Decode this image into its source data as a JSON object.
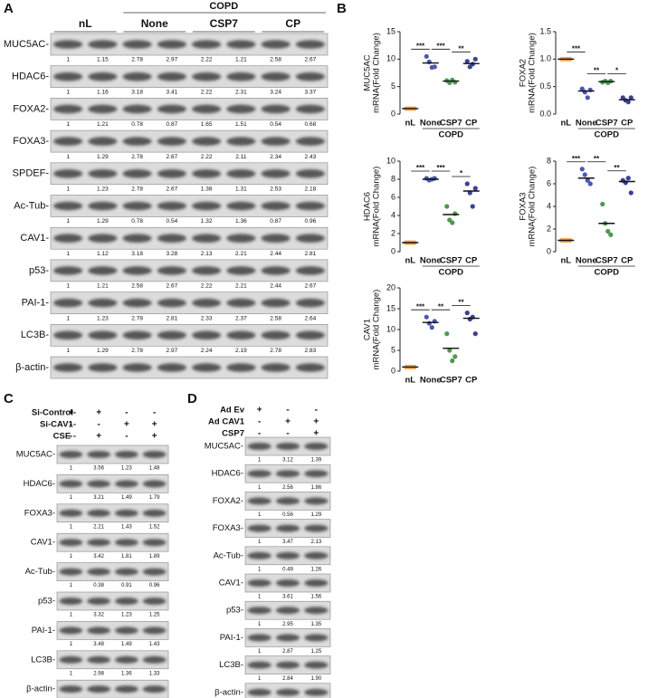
{
  "letters": [
    "A",
    "B",
    "C",
    "D"
  ],
  "panel_a": {
    "group_label": "COPD",
    "lanes": [
      "nL",
      "None",
      "CSP7",
      "CP"
    ],
    "blots": [
      {
        "label": "MUC5AC-",
        "values": [
          "1",
          "1.15",
          "2.78",
          "2.97",
          "2.22",
          "1.21",
          "2.58",
          "2.67"
        ]
      },
      {
        "label": "HDAC6-",
        "values": [
          "1",
          "1.16",
          "3.18",
          "3.41",
          "2.22",
          "2.31",
          "3.24",
          "3.37"
        ]
      },
      {
        "label": "FOXA2-",
        "values": [
          "1",
          "1.21",
          "0.78",
          "0.87",
          "1.65",
          "1.51",
          "0.54",
          "0.68"
        ]
      },
      {
        "label": "FOXA3-",
        "values": [
          "1",
          "1.29",
          "2.78",
          "2.67",
          "2.22",
          "2.11",
          "2.34",
          "2.43"
        ]
      },
      {
        "label": "SPDEF-",
        "values": [
          "1",
          "1.23",
          "2.78",
          "2.67",
          "1.38",
          "1.31",
          "2.53",
          "2.18"
        ]
      },
      {
        "label": "Ac-Tub-",
        "values": [
          "1",
          "1.29",
          "0.78",
          "0.54",
          "1.32",
          "1.36",
          "0.87",
          "0.96"
        ]
      },
      {
        "label": "CAV1-",
        "values": [
          "1",
          "1.12",
          "3.18",
          "3.28",
          "2.13",
          "2.21",
          "2.44",
          "2.81"
        ]
      },
      {
        "label": "p53-",
        "values": [
          "1",
          "1.21",
          "2.58",
          "2.67",
          "2.22",
          "2.21",
          "2.44",
          "2.67"
        ]
      },
      {
        "label": "PAI-1-",
        "values": [
          "1",
          "1.23",
          "2.78",
          "2.81",
          "2.33",
          "2.37",
          "2.58",
          "2.64"
        ]
      },
      {
        "label": "LC3B-",
        "values": [
          "1",
          "1.29",
          "2.78",
          "2.97",
          "2.24",
          "2.19",
          "2.78",
          "2.83"
        ]
      },
      {
        "label": "β-actin-",
        "values": []
      }
    ]
  },
  "chart_data": [
    {
      "type": "dot",
      "ylabel": [
        "MUC5AC",
        "mRNA(Fold Change)"
      ],
      "categories": [
        "nL",
        "None",
        "CSP7",
        "CP"
      ],
      "group_label": "COPD",
      "colors": [
        "#f4a24c",
        "#4b57b3",
        "#4c9a4c",
        "#3b3f98"
      ],
      "points": [
        [
          1,
          1,
          1,
          1
        ],
        [
          10.5,
          9.5,
          8.5,
          8.6
        ],
        [
          6.1,
          5.7,
          6.2,
          5.8
        ],
        [
          9.6,
          8.6,
          9.1,
          10.0
        ]
      ],
      "means": [
        1,
        9.3,
        6.0,
        9.2
      ],
      "significance": [
        "***",
        "***",
        "**"
      ],
      "ylim": [
        0,
        15
      ],
      "yticks": [
        0,
        5,
        10,
        15
      ]
    },
    {
      "type": "dot",
      "ylabel": [
        "FOXA2",
        "mRNA(Fold Change)"
      ],
      "categories": [
        "nL",
        "None",
        "CSP7",
        "CP"
      ],
      "group_label": "COPD",
      "colors": [
        "#f4a24c",
        "#4b57b3",
        "#4c9a4c",
        "#3b3f98"
      ],
      "points": [
        [
          1,
          1,
          1,
          1
        ],
        [
          0.46,
          0.4,
          0.3,
          0.44
        ],
        [
          0.58,
          0.6,
          0.57,
          0.6
        ],
        [
          0.3,
          0.25,
          0.22,
          0.3
        ]
      ],
      "means": [
        1,
        0.42,
        0.59,
        0.26
      ],
      "significance": [
        "***",
        "**",
        "*"
      ],
      "ylim": [
        0,
        1.5
      ],
      "yticks": [
        {
          "value": 0,
          "label": "0.0"
        },
        0.5,
        {
          "value": 1,
          "label": "1.0"
        },
        1.5
      ]
    },
    {
      "type": "dot",
      "ylabel": [
        "HDAC6",
        "mRNA(Fold Change)"
      ],
      "categories": [
        "nL",
        "None",
        "CSP7",
        "CP"
      ],
      "group_label": "COPD",
      "colors": [
        "#f4a24c",
        "#4b57b3",
        "#4c9a4c",
        "#3b3f98"
      ],
      "points": [
        [
          1,
          1,
          1,
          1
        ],
        [
          8.1,
          7.9,
          8.0,
          8.1
        ],
        [
          5.0,
          3.5,
          3.2,
          4.2
        ],
        [
          7.5,
          6.5,
          5.0,
          7.0
        ]
      ],
      "means": [
        1,
        8.0,
        4.1,
        6.7
      ],
      "significance": [
        "***",
        "***",
        "*"
      ],
      "ylim": [
        0,
        10
      ],
      "yticks": [
        0,
        2,
        4,
        6,
        8,
        10
      ]
    },
    {
      "type": "dot",
      "ylabel": [
        "FOXA3",
        "mRNA(Fold Change)"
      ],
      "categories": [
        "nL",
        "None",
        "CSP7",
        "CP"
      ],
      "group_label": "COPD",
      "colors": [
        "#f4a24c",
        "#4b57b3",
        "#4c9a4c",
        "#3b3f98"
      ],
      "points": [
        [
          1,
          1,
          1,
          1
        ],
        [
          7.3,
          6.8,
          6.3,
          6.0
        ],
        [
          4.2,
          2.5,
          1.8,
          1.5
        ],
        [
          6.3,
          6.1,
          6.5,
          5.2
        ]
      ],
      "means": [
        1,
        6.5,
        2.5,
        6.2
      ],
      "significance": [
        "***",
        "**",
        "**"
      ],
      "ylim": [
        0,
        8
      ],
      "yticks": [
        0,
        2,
        4,
        6,
        8
      ]
    },
    {
      "type": "dot",
      "ylabel": [
        "CAV1",
        "mRNA(Fold Change)"
      ],
      "categories": [
        "nL",
        "None",
        "CSP7",
        "CP"
      ],
      "colors": [
        "#f4a24c",
        "#4b57b3",
        "#4c9a4c",
        "#3b3f98"
      ],
      "points": [
        [
          1,
          1,
          1,
          1
        ],
        [
          13.0,
          11.5,
          10.5,
          12.0
        ],
        [
          9.0,
          5.0,
          2.5,
          3.5
        ],
        [
          14.0,
          12.5,
          13.0,
          9.0
        ]
      ],
      "means": [
        1,
        11.7,
        5.5,
        12.7
      ],
      "significance": [
        "***",
        "**",
        "**"
      ],
      "ylim": [
        0,
        20
      ],
      "yticks": [
        0,
        5,
        10,
        15,
        20
      ]
    }
  ],
  "panel_c": {
    "conditions": [
      {
        "label": "Si-Control-",
        "signs": [
          "+",
          "+",
          "-",
          "-"
        ]
      },
      {
        "label": "Si-CAV1-",
        "signs": [
          "-",
          "-",
          "+",
          "+"
        ]
      },
      {
        "label": "CSE -",
        "signs": [
          "-",
          "+",
          "-",
          "+"
        ]
      }
    ],
    "blots": [
      {
        "label": "MUC5AC-",
        "values": [
          "1",
          "3.56",
          "1.23",
          "1.48"
        ]
      },
      {
        "label": "HDAC6-",
        "values": [
          "1",
          "3.21",
          "1.49",
          "1.79"
        ]
      },
      {
        "label": "FOXA3-",
        "values": [
          "1",
          "2.21",
          "1.43",
          "1.52"
        ]
      },
      {
        "label": "CAV1-",
        "values": [
          "1",
          "3.42",
          "1.81",
          "1.89"
        ]
      },
      {
        "label": "Ac-Tub-",
        "values": [
          "1",
          "0.38",
          "0.91",
          "0.96"
        ]
      },
      {
        "label": "p53-",
        "values": [
          "1",
          "3.32",
          "1.23",
          "1.25"
        ]
      },
      {
        "label": "PAI-1-",
        "values": [
          "1",
          "3.48",
          "1.49",
          "1.43"
        ]
      },
      {
        "label": "LC3B-",
        "values": [
          "1",
          "2.98",
          "1.36",
          "1.33"
        ]
      },
      {
        "label": "β-actin-",
        "values": []
      }
    ]
  },
  "panel_d": {
    "conditions": [
      {
        "label": "Ad Ev",
        "signs": [
          "+",
          "-",
          "-"
        ]
      },
      {
        "label": "Ad CAV1",
        "signs": [
          "-",
          "+",
          "+"
        ]
      },
      {
        "label": "CSP7",
        "signs": [
          "-",
          "-",
          "+"
        ]
      }
    ],
    "blots": [
      {
        "label": "MUC5AC-",
        "values": [
          "1",
          "3.12",
          "1.39"
        ]
      },
      {
        "label": "HDAC6-",
        "values": [
          "1",
          "2.56",
          "1.86"
        ]
      },
      {
        "label": "FOXA2-",
        "values": [
          "1",
          "0.56",
          "1.29"
        ]
      },
      {
        "label": "FOXA3-",
        "values": [
          "1",
          "3.47",
          "2.13"
        ]
      },
      {
        "label": "Ac-Tub-",
        "values": [
          "1",
          "0.49",
          "1.26"
        ]
      },
      {
        "label": "CAV1-",
        "values": [
          "1",
          "3.61",
          "1.56"
        ]
      },
      {
        "label": "p53-",
        "values": [
          "1",
          "2.95",
          "1.35"
        ]
      },
      {
        "label": "PAI-1-",
        "values": [
          "1",
          "2.87",
          "1.25"
        ]
      },
      {
        "label": "LC3B-",
        "values": [
          "1",
          "2.84",
          "1.90"
        ]
      },
      {
        "label": "β-actin-",
        "values": []
      }
    ]
  }
}
